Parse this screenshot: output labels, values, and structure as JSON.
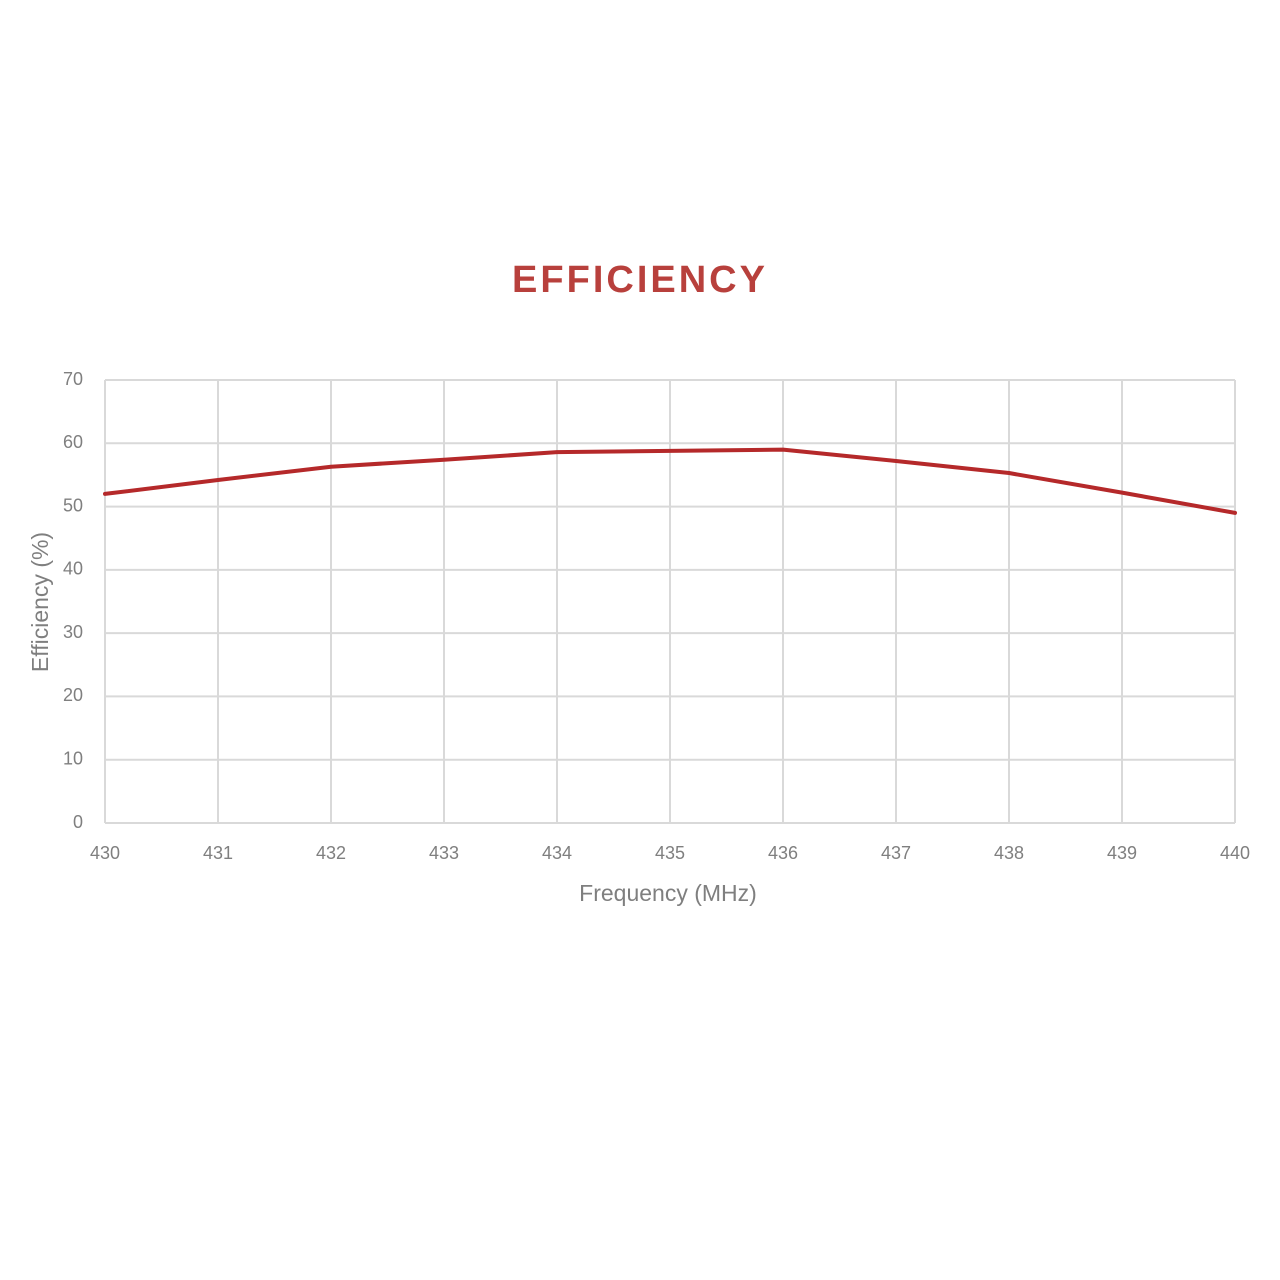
{
  "chart_data": {
    "type": "line",
    "title": "EFFICIENCY",
    "x_label": "Frequency (MHz)",
    "y_label": "Efficiency (%)",
    "x": [
      430,
      431,
      432,
      433,
      434,
      435,
      436,
      437,
      438,
      439,
      440
    ],
    "series": [
      {
        "name": "Efficiency",
        "color": "#b5292a",
        "values": [
          52,
          54.2,
          56.3,
          57.4,
          58.6,
          58.8,
          59,
          57.2,
          55.3,
          52.2,
          49
        ]
      }
    ],
    "xlim": [
      430,
      440
    ],
    "xticks": [
      430,
      431,
      432,
      433,
      434,
      435,
      436,
      437,
      438,
      439,
      440
    ],
    "ylim": [
      0,
      70
    ],
    "yticks": [
      0,
      10,
      20,
      30,
      40,
      50,
      60,
      70
    ],
    "grid": true
  }
}
